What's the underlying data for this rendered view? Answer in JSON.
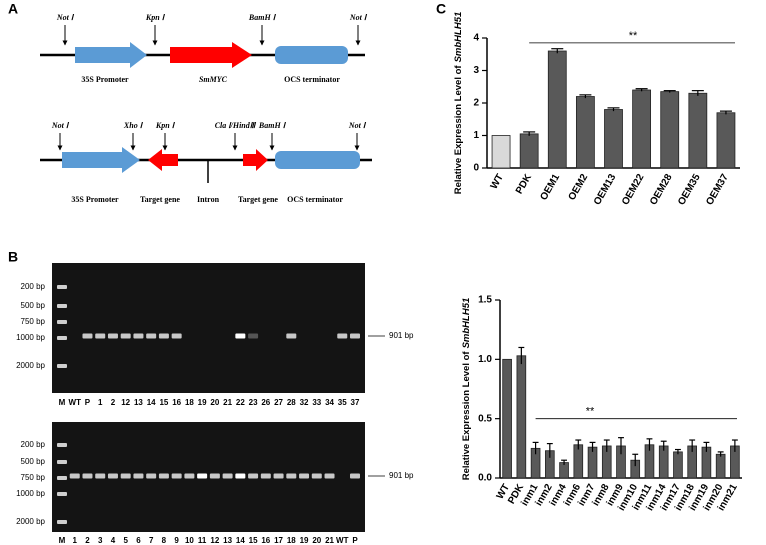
{
  "panel_labels": [
    "A",
    "B",
    "C"
  ],
  "constructs": [
    {
      "sites": [
        "Not Ⅰ",
        "Kpn Ⅰ",
        "BamH Ⅰ",
        "Not Ⅰ"
      ],
      "parts": [
        "35S Promoter",
        "SmMYC",
        "OCS terminator"
      ]
    },
    {
      "sites": [
        "Not Ⅰ",
        "Xho Ⅰ",
        "Kpn Ⅰ",
        "Cla Ⅰ/HindⅢ",
        "BamH Ⅰ",
        "Not Ⅰ"
      ],
      "parts": [
        "35S Promoter",
        "Target gene",
        "Intron",
        "Target gene",
        "OCS terminator"
      ]
    }
  ],
  "gels": [
    {
      "markers": [
        "200 bp",
        "500 bp",
        "750 bp",
        "1000 bp",
        "2000 bp"
      ],
      "band_label": "901 bp",
      "lanes": [
        "M",
        "WT",
        "P",
        "1",
        "2",
        "12",
        "13",
        "14",
        "15",
        "16",
        "18",
        "19",
        "20",
        "21",
        "22",
        "23",
        "26",
        "27",
        "28",
        "32",
        "33",
        "34",
        "35",
        "37"
      ]
    },
    {
      "markers": [
        "200 bp",
        "500 bp",
        "750 bp",
        "1000 bp",
        "2000 bp"
      ],
      "band_label": "901 bp",
      "lanes": [
        "M",
        "1",
        "2",
        "3",
        "4",
        "5",
        "6",
        "7",
        "8",
        "9",
        "10",
        "11",
        "12",
        "13",
        "14",
        "15",
        "16",
        "17",
        "18",
        "19",
        "20",
        "21",
        "WT",
        "P"
      ]
    }
  ],
  "chart_data": [
    {
      "type": "bar",
      "ylabel": "Relative Expression Level of",
      "ylabel_italic": "SmbHLH51",
      "annotation": "**",
      "categories": [
        "WT",
        "PDK",
        "OEM1",
        "OEM2",
        "OEM13",
        "OEM22",
        "OEM28",
        "OEM35",
        "OEM37"
      ],
      "values": [
        1.0,
        1.05,
        3.6,
        2.2,
        1.8,
        2.4,
        2.35,
        2.3,
        1.7
      ],
      "errors": [
        0,
        0.06,
        0.07,
        0.05,
        0.05,
        0.04,
        0.03,
        0.08,
        0.05
      ],
      "colors": [
        "#d9d9d9",
        "#595959",
        "#595959",
        "#595959",
        "#595959",
        "#595959",
        "#595959",
        "#595959",
        "#595959"
      ],
      "ylim": [
        0,
        4
      ],
      "yticks": [
        0,
        1,
        2,
        3,
        4
      ]
    },
    {
      "type": "bar",
      "ylabel": "Relative Expression Level of",
      "ylabel_italic": "SmbHLH51",
      "annotation": "**",
      "categories": [
        "WT",
        "PDK",
        "inm1",
        "inm2",
        "inm4",
        "inm6",
        "inm7",
        "inm8",
        "inm9",
        "inm10",
        "inm11",
        "inm14",
        "inm17",
        "inm18",
        "inm19",
        "inm20",
        "inm21"
      ],
      "values": [
        1.0,
        1.03,
        0.25,
        0.23,
        0.13,
        0.28,
        0.26,
        0.27,
        0.27,
        0.15,
        0.28,
        0.27,
        0.22,
        0.27,
        0.26,
        0.2,
        0.27
      ],
      "errors": [
        0,
        0.07,
        0.05,
        0.06,
        0.02,
        0.04,
        0.04,
        0.05,
        0.07,
        0.05,
        0.05,
        0.04,
        0.02,
        0.05,
        0.04,
        0.02,
        0.05
      ],
      "color": "#595959",
      "ylim": [
        0,
        1.5
      ],
      "yticks": [
        {
          "value": 0,
          "label": "0.0"
        },
        0.5,
        {
          "value": 1,
          "label": "1.0"
        },
        1.5
      ]
    }
  ]
}
